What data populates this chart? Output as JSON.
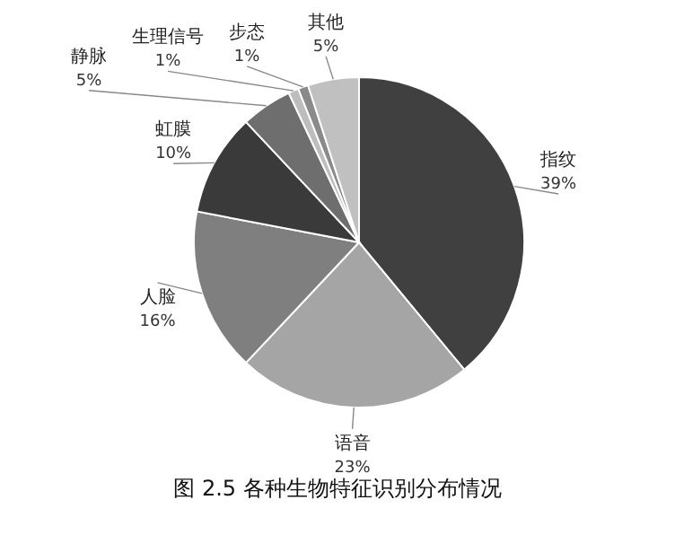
{
  "chart_data": {
    "type": "pie",
    "title": "图 2.5 各种生物特征识别分布情况",
    "categories": [
      "指纹",
      "语音",
      "人脸",
      "虹膜",
      "静脉",
      "生理信号",
      "步态",
      "其他"
    ],
    "values": [
      39,
      23,
      16,
      10,
      5,
      1,
      1,
      5
    ],
    "colors": [
      "#404040",
      "#a5a5a5",
      "#7f7f7f",
      "#3a3a3a",
      "#6e6e6e",
      "#bdbdbd",
      "#8a8a8a",
      "#c0c0c0"
    ],
    "value_labels": [
      "39%",
      "23%",
      "16%",
      "10%",
      "5%",
      "1%",
      "1%",
      "5%"
    ]
  }
}
